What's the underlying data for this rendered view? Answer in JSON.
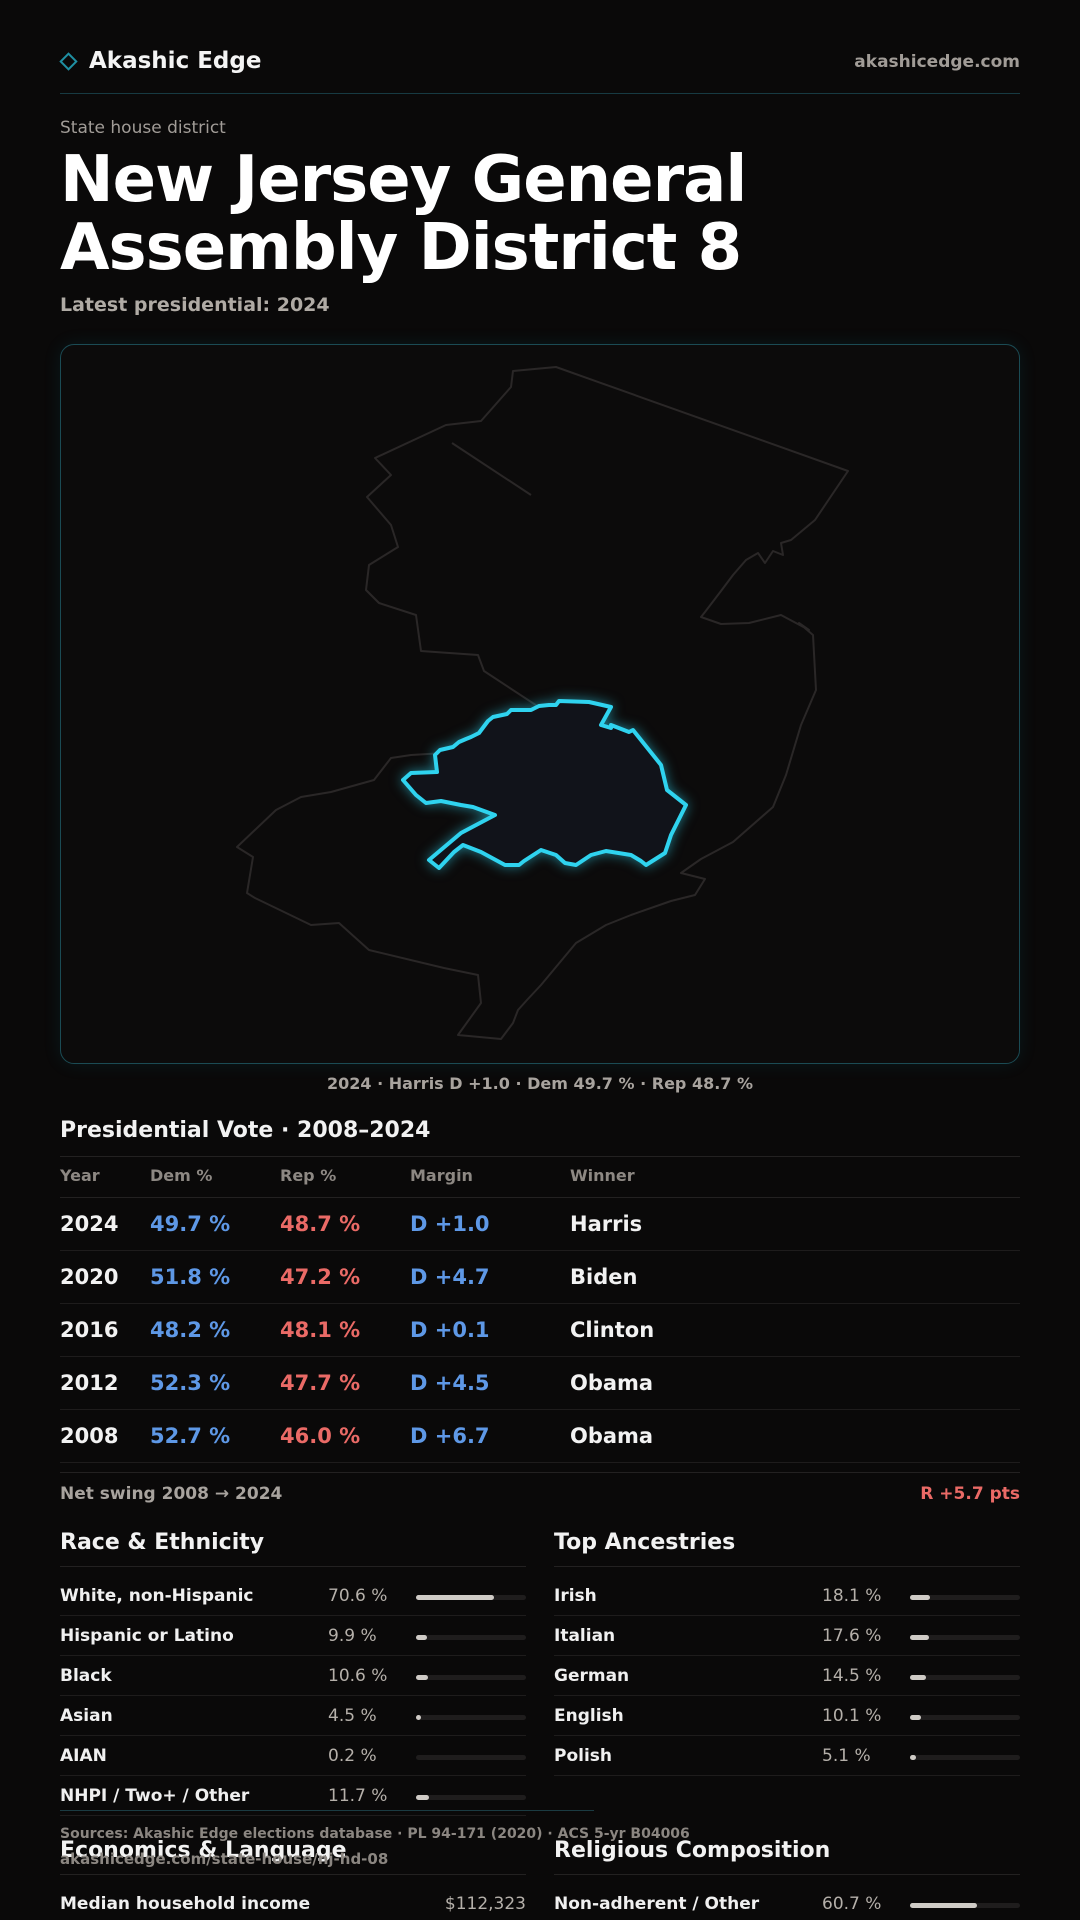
{
  "brand": {
    "name": "Akashic Edge",
    "site": "akashicedge.com"
  },
  "eyebrow": "State house district",
  "title": "New Jersey General Assembly District 8",
  "subtitle": "Latest presidential: 2024",
  "map_caption": "2024 · Harris D +1.0 · Dem 49.7 % · Rep 48.7 %",
  "colors": {
    "accent": "#2fd3ef",
    "dem": "#5e98e6",
    "rep": "#ea6a66"
  },
  "presidential": {
    "title": "Presidential Vote · 2008–2024",
    "headers": {
      "year": "Year",
      "dem": "Dem %",
      "rep": "Rep %",
      "margin": "Margin",
      "winner": "Winner"
    },
    "rows": [
      {
        "year": "2024",
        "dem": "49.7 %",
        "rep": "48.7 %",
        "margin": "D +1.0",
        "winner": "Harris"
      },
      {
        "year": "2020",
        "dem": "51.8 %",
        "rep": "47.2 %",
        "margin": "D +4.7",
        "winner": "Biden"
      },
      {
        "year": "2016",
        "dem": "48.2 %",
        "rep": "48.1 %",
        "margin": "D +0.1",
        "winner": "Clinton"
      },
      {
        "year": "2012",
        "dem": "52.3 %",
        "rep": "47.7 %",
        "margin": "D +4.5",
        "winner": "Obama"
      },
      {
        "year": "2008",
        "dem": "52.7 %",
        "rep": "46.0 %",
        "margin": "D +6.7",
        "winner": "Obama"
      }
    ],
    "swing_label": "Net swing 2008 → 2024",
    "swing_value": "R +5.7 pts"
  },
  "race": {
    "title": "Race & Ethnicity",
    "rows": [
      {
        "label": "White, non-Hispanic",
        "pct": "70.6 %",
        "value": 70.6
      },
      {
        "label": "Hispanic or Latino",
        "pct": "9.9 %",
        "value": 9.9
      },
      {
        "label": "Black",
        "pct": "10.6 %",
        "value": 10.6
      },
      {
        "label": "Asian",
        "pct": "4.5 %",
        "value": 4.5
      },
      {
        "label": "AIAN",
        "pct": "0.2 %",
        "value": 0.2
      },
      {
        "label": "NHPI / Two+ / Other",
        "pct": "11.7 %",
        "value": 11.7
      }
    ]
  },
  "ancestry": {
    "title": "Top Ancestries",
    "rows": [
      {
        "label": "Irish",
        "pct": "18.1 %",
        "value": 18.1
      },
      {
        "label": "Italian",
        "pct": "17.6 %",
        "value": 17.6
      },
      {
        "label": "German",
        "pct": "14.5 %",
        "value": 14.5
      },
      {
        "label": "English",
        "pct": "10.1 %",
        "value": 10.1
      },
      {
        "label": "Polish",
        "pct": "5.1 %",
        "value": 5.1
      }
    ]
  },
  "economics": {
    "title": "Economics & Language",
    "first_label": "Median household income",
    "first_value": "$112,323"
  },
  "religion": {
    "title": "Religious Composition",
    "first_label": "Non-adherent / Other",
    "first_pct": "60.7 %",
    "first_value": 60.7
  },
  "footer": {
    "sources": "Sources: Akashic Edge elections database · PL 94-171 (2020) · ACS 5-yr B04006",
    "url": "akashicedge.com/state-house/nj-hd-08"
  }
}
